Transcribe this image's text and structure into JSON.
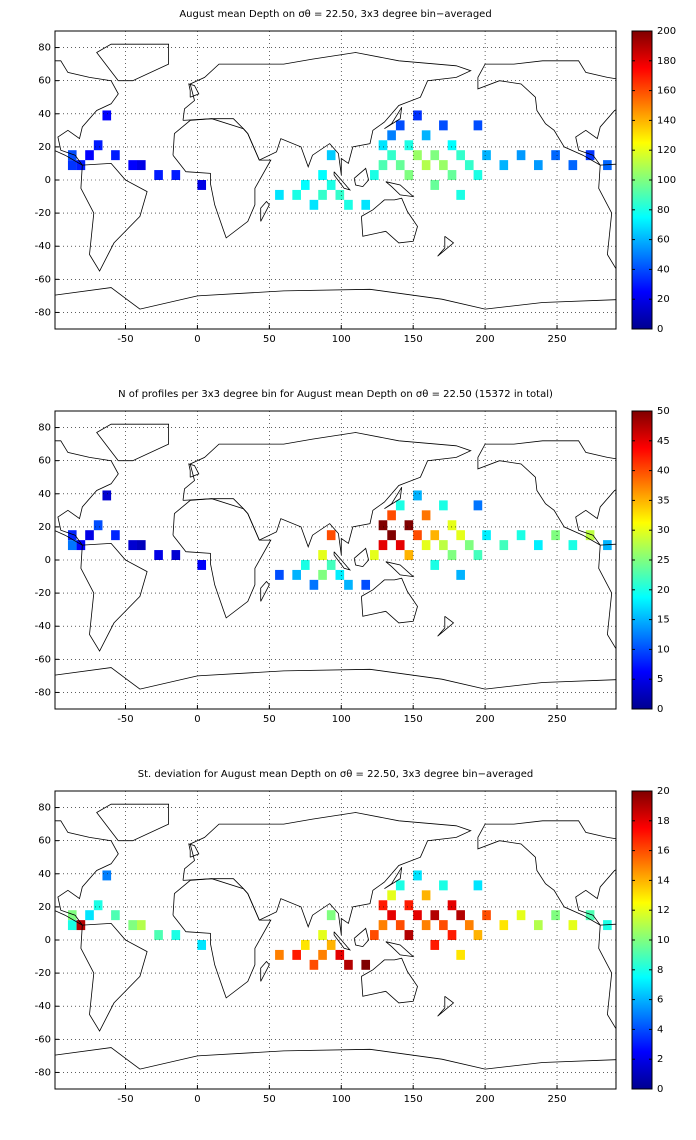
{
  "chart_data": [
    {
      "type": "heatmap",
      "title": "August mean Depth on σθ = 22.50, 3x3 degree bin−averaged",
      "x": [
        -87,
        -87,
        -81,
        -75,
        -69,
        -63,
        -57,
        -45,
        -39,
        -27,
        -15,
        3,
        57,
        69,
        75,
        81,
        87,
        87,
        93,
        93,
        99,
        105,
        117,
        123,
        129,
        129,
        135,
        135,
        141,
        141,
        147,
        147,
        153,
        153,
        159,
        159,
        165,
        165,
        171,
        171,
        177,
        177,
        183,
        183,
        189,
        195,
        195,
        201,
        213,
        225,
        237,
        249,
        261,
        273,
        285
      ],
      "y": [
        15,
        9,
        9,
        15,
        21,
        39,
        15,
        9,
        9,
        3,
        3,
        -3,
        -9,
        -9,
        -3,
        -15,
        3,
        -9,
        15,
        -3,
        -9,
        -15,
        -15,
        3,
        9,
        21,
        27,
        15,
        9,
        33,
        3,
        21,
        15,
        39,
        9,
        27,
        -3,
        15,
        9,
        33,
        21,
        3,
        -9,
        15,
        9,
        33,
        3,
        15,
        9,
        15,
        9,
        15,
        9,
        15,
        9
      ],
      "values": [
        40,
        35,
        30,
        25,
        30,
        25,
        30,
        25,
        20,
        30,
        30,
        20,
        70,
        80,
        75,
        70,
        75,
        85,
        65,
        80,
        85,
        80,
        70,
        80,
        90,
        70,
        50,
        85,
        95,
        40,
        100,
        80,
        105,
        35,
        110,
        60,
        95,
        100,
        105,
        40,
        75,
        95,
        80,
        85,
        85,
        40,
        80,
        60,
        60,
        55,
        55,
        45,
        45,
        35,
        45
      ],
      "xlim": [
        -99,
        291
      ],
      "ylim": [
        -90,
        90
      ],
      "xticks": [
        -50,
        0,
        50,
        100,
        150,
        200,
        250
      ],
      "yticks": [
        -80,
        -60,
        -40,
        -20,
        0,
        20,
        40,
        60,
        80
      ],
      "clim": [
        0,
        200
      ],
      "cticks": [
        0,
        20,
        40,
        60,
        80,
        100,
        120,
        140,
        160,
        180,
        200
      ],
      "colormap": "jet",
      "grid": true
    },
    {
      "type": "heatmap",
      "title": "N of profiles per 3x3 degree bin for August mean Depth on σθ = 22.50 (15372 in total)",
      "x": [
        -87,
        -87,
        -81,
        -75,
        -69,
        -63,
        -57,
        -45,
        -39,
        -27,
        -15,
        3,
        57,
        69,
        75,
        81,
        87,
        87,
        93,
        93,
        99,
        105,
        117,
        123,
        129,
        129,
        135,
        135,
        141,
        141,
        147,
        147,
        153,
        153,
        159,
        159,
        165,
        165,
        171,
        171,
        177,
        177,
        183,
        183,
        189,
        195,
        195,
        201,
        213,
        225,
        237,
        249,
        261,
        273,
        285
      ],
      "y": [
        15,
        9,
        9,
        15,
        21,
        39,
        15,
        9,
        9,
        3,
        3,
        -3,
        -9,
        -9,
        -3,
        -15,
        3,
        -9,
        15,
        -3,
        -9,
        -15,
        -15,
        3,
        9,
        21,
        27,
        15,
        9,
        33,
        3,
        21,
        15,
        39,
        9,
        27,
        -3,
        15,
        9,
        33,
        21,
        3,
        -9,
        15,
        9,
        33,
        3,
        15,
        9,
        15,
        9,
        15,
        9,
        15,
        9
      ],
      "values": [
        8,
        12,
        6,
        5,
        10,
        4,
        8,
        4,
        3,
        5,
        4,
        6,
        10,
        15,
        20,
        12,
        30,
        25,
        40,
        22,
        18,
        15,
        10,
        30,
        45,
        50,
        40,
        50,
        45,
        20,
        35,
        50,
        40,
        15,
        30,
        38,
        20,
        35,
        28,
        20,
        30,
        25,
        15,
        30,
        25,
        12,
        22,
        18,
        22,
        20,
        18,
        25,
        20,
        28,
        15
      ],
      "xlim": [
        -99,
        291
      ],
      "ylim": [
        -90,
        90
      ],
      "xticks": [
        -50,
        0,
        50,
        100,
        150,
        200,
        250
      ],
      "yticks": [
        -80,
        -60,
        -40,
        -20,
        0,
        20,
        40,
        60,
        80
      ],
      "clim": [
        0,
        50
      ],
      "cticks": [
        0,
        5,
        10,
        15,
        20,
        25,
        30,
        35,
        40,
        45,
        50
      ],
      "colormap": "jet",
      "grid": true
    },
    {
      "type": "heatmap",
      "title": "St. deviation for August mean Depth on σθ = 22.50, 3x3 degree bin−averaged",
      "x": [
        -87,
        -87,
        -81,
        -75,
        -69,
        -63,
        -57,
        -45,
        -39,
        -27,
        -15,
        3,
        57,
        69,
        75,
        81,
        87,
        87,
        93,
        93,
        99,
        105,
        117,
        123,
        129,
        129,
        135,
        135,
        141,
        141,
        147,
        147,
        153,
        153,
        159,
        159,
        165,
        165,
        171,
        171,
        177,
        177,
        183,
        183,
        189,
        195,
        195,
        201,
        213,
        225,
        237,
        249,
        261,
        273,
        285
      ],
      "y": [
        15,
        9,
        9,
        15,
        21,
        39,
        15,
        9,
        9,
        3,
        3,
        -3,
        -9,
        -9,
        -3,
        -15,
        3,
        -9,
        15,
        -3,
        -9,
        -15,
        -15,
        3,
        9,
        21,
        27,
        15,
        9,
        33,
        3,
        21,
        15,
        39,
        9,
        27,
        -3,
        15,
        9,
        33,
        21,
        3,
        -9,
        15,
        9,
        33,
        3,
        15,
        9,
        15,
        9,
        15,
        9,
        15,
        9
      ],
      "values": [
        10,
        8,
        19,
        7,
        8,
        5,
        9,
        10,
        11,
        9,
        8,
        7,
        15,
        17,
        13,
        16,
        12,
        15,
        10,
        14,
        18,
        19,
        20,
        16,
        15,
        17,
        12,
        18,
        16,
        8,
        19,
        17,
        18,
        7,
        15,
        14,
        17,
        19,
        16,
        8,
        18,
        17,
        13,
        19,
        15,
        7,
        14,
        16,
        13,
        12,
        11,
        10,
        12,
        9,
        8
      ],
      "xlim": [
        -99,
        291
      ],
      "ylim": [
        -90,
        90
      ],
      "xticks": [
        -50,
        0,
        50,
        100,
        150,
        200,
        250
      ],
      "yticks": [
        -80,
        -60,
        -40,
        -20,
        0,
        20,
        40,
        60,
        80
      ],
      "clim": [
        0,
        20
      ],
      "cticks": [
        0,
        2,
        4,
        6,
        8,
        10,
        12,
        14,
        16,
        18,
        20
      ],
      "colormap": "jet",
      "grid": true
    }
  ]
}
